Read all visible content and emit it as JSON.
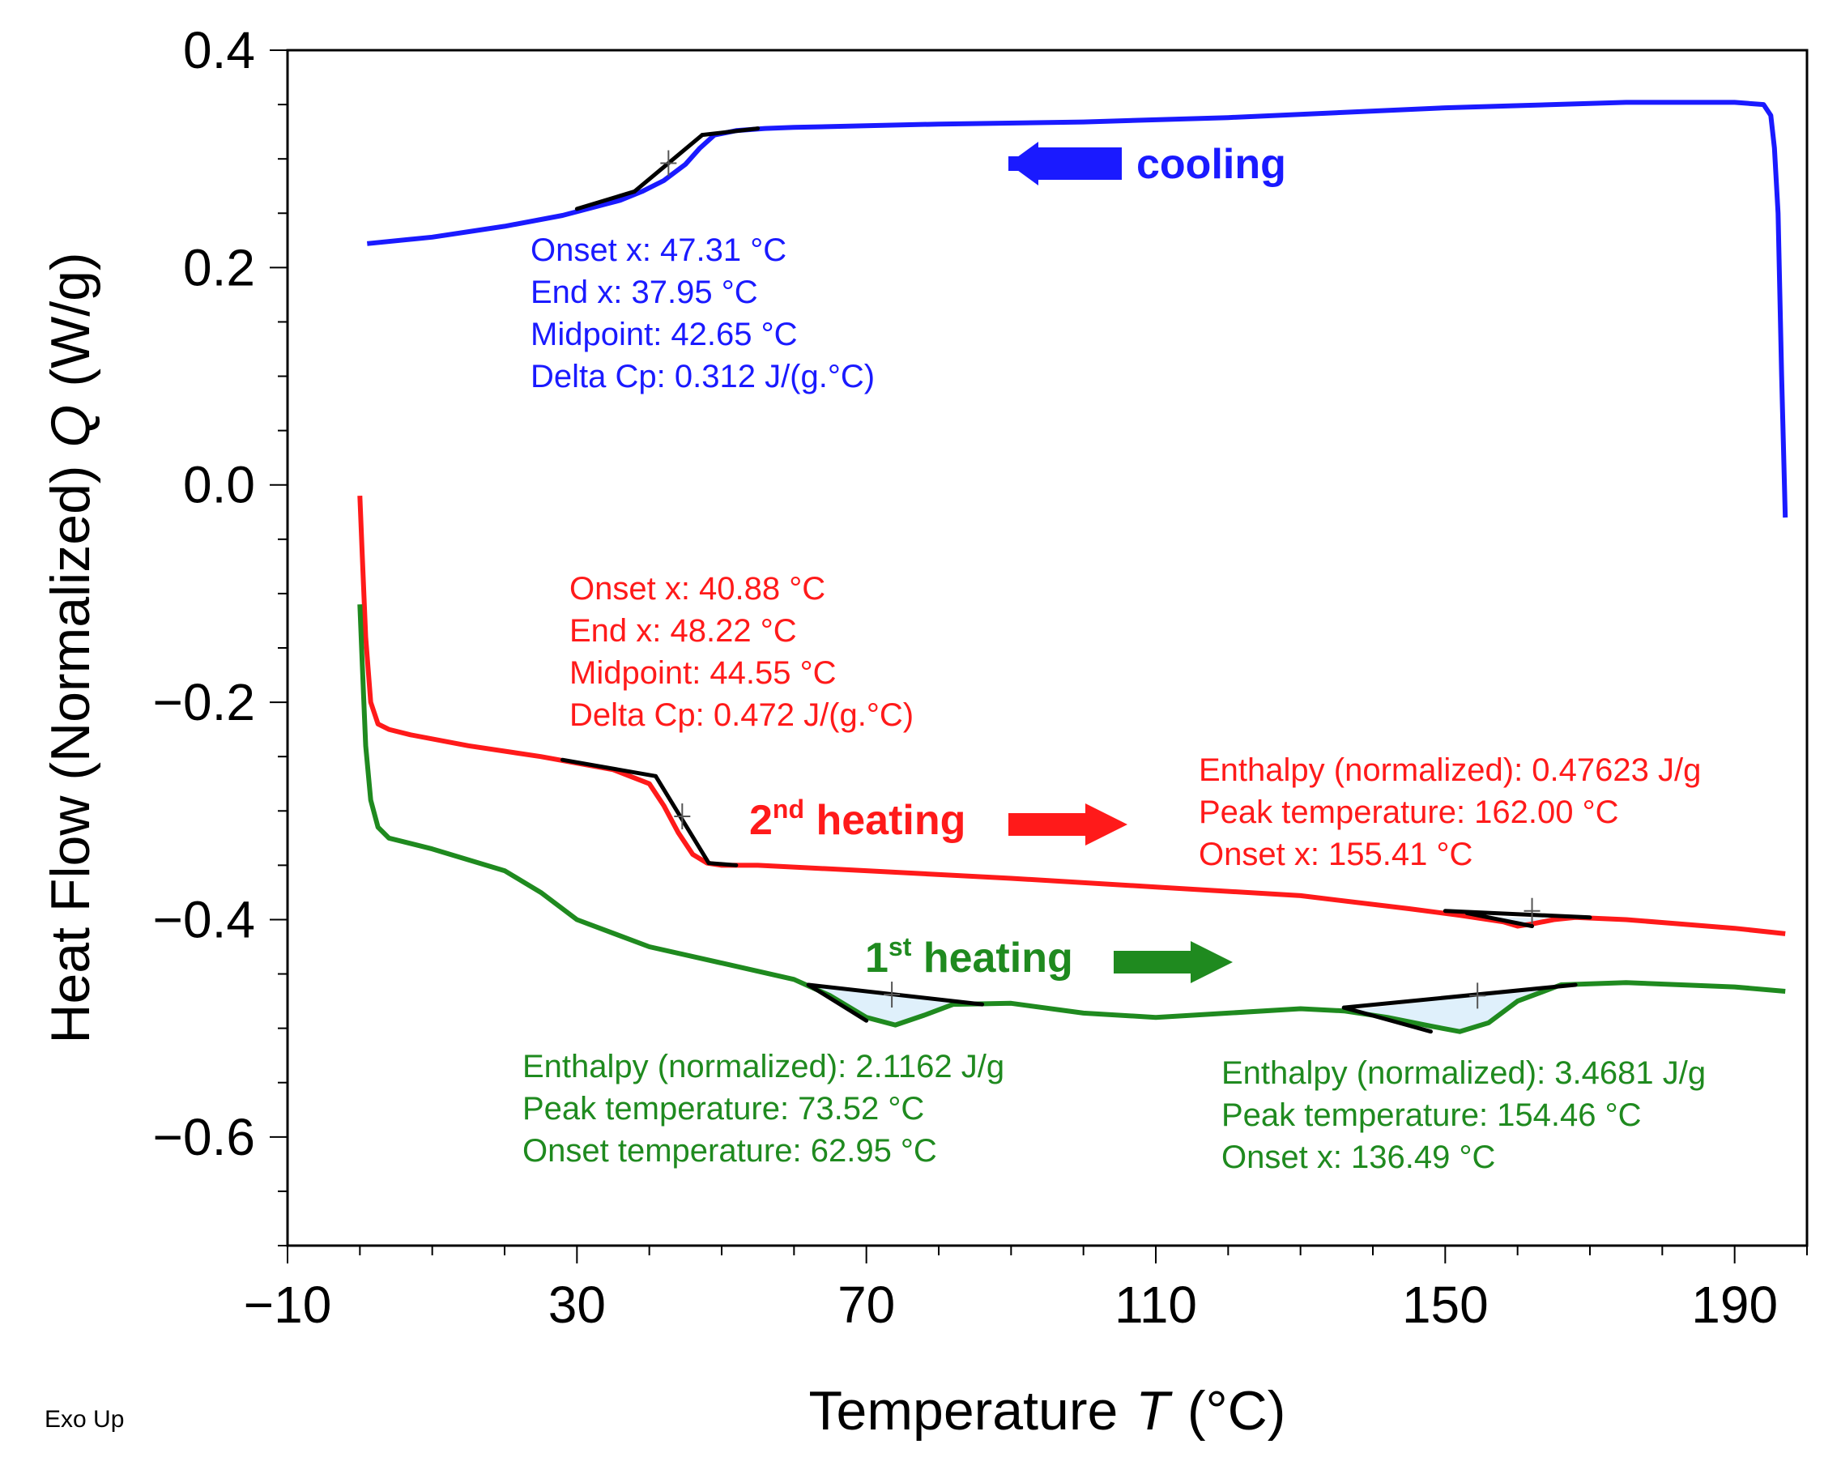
{
  "chart_data": {
    "type": "line",
    "title": "",
    "xlabel": "Temperature",
    "xlabel_symbol": "T",
    "xlabel_unit": "(°C)",
    "ylabel": "Heat Flow (Normalized)",
    "ylabel_symbol": "Q",
    "ylabel_unit": "(W/g)",
    "xlim": [
      -10,
      200
    ],
    "ylim": [
      -0.7,
      0.4
    ],
    "xticks": [
      -10,
      30,
      70,
      110,
      150,
      190
    ],
    "xtick_labels": [
      "−10",
      "30",
      "70",
      "110",
      "150",
      "190"
    ],
    "yticks": [
      0.4,
      0.2,
      0.0,
      -0.2,
      -0.4,
      -0.6
    ],
    "ytick_labels": [
      "0.4",
      "0.2",
      "0.0",
      "−0.2",
      "−0.4",
      "−0.6"
    ],
    "grid": false,
    "footer_note": "Exo Up",
    "series": [
      {
        "name": "cooling",
        "label": "cooling",
        "color": "#1a1aff",
        "direction": "left",
        "x": [
          197,
          196.5,
          196,
          195.5,
          195,
          194,
          190,
          175,
          150,
          120,
          100,
          80,
          60,
          56,
          52,
          49,
          47,
          45,
          42,
          39,
          36,
          32,
          28,
          20,
          10,
          1
        ],
        "y": [
          -0.03,
          0.1,
          0.25,
          0.31,
          0.34,
          0.35,
          0.352,
          0.352,
          0.347,
          0.338,
          0.334,
          0.332,
          0.329,
          0.328,
          0.326,
          0.322,
          0.31,
          0.295,
          0.28,
          0.27,
          0.262,
          0.255,
          0.248,
          0.238,
          0.228,
          0.222
        ],
        "annotations": [
          "Onset x: 47.31 °C",
          "End x: 37.95 °C",
          "Midpoint: 42.65 °C",
          "Delta Cp: 0.312 J/(g.°C)"
        ]
      },
      {
        "name": "2nd heating",
        "label_prefix": "2",
        "label_sup": "nd",
        "label_suffix": " heating",
        "color": "#ff1a1a",
        "direction": "right",
        "x": [
          0,
          0.3,
          0.8,
          1.5,
          2.5,
          4,
          7,
          15,
          25,
          35,
          40,
          42,
          44,
          46,
          48,
          50,
          55,
          70,
          90,
          110,
          130,
          145,
          152,
          158,
          160,
          162,
          165,
          168,
          175,
          190,
          197
        ],
        "y": [
          -0.01,
          -0.06,
          -0.14,
          -0.2,
          -0.22,
          -0.225,
          -0.23,
          -0.24,
          -0.25,
          -0.262,
          -0.275,
          -0.295,
          -0.32,
          -0.34,
          -0.348,
          -0.35,
          -0.35,
          -0.355,
          -0.362,
          -0.37,
          -0.378,
          -0.39,
          -0.396,
          -0.402,
          -0.406,
          -0.404,
          -0.4,
          -0.398,
          -0.4,
          -0.408,
          -0.413
        ],
        "annotations": [
          "Onset x: 40.88 °C",
          "End x: 48.22 °C",
          "Midpoint: 44.55 °C",
          "Delta Cp: 0.472 J/(g.°C)"
        ],
        "annotations_peak": [
          "Enthalpy (normalized): 0.47623 J/g",
          "Peak temperature: 162.00 °C",
          "Onset x: 155.41 °C"
        ]
      },
      {
        "name": "1st heating",
        "label_prefix": "1",
        "label_sup": "st",
        "label_suffix": " heating",
        "color": "#1f8a1f",
        "direction": "right",
        "x": [
          0,
          0.3,
          0.8,
          1.5,
          2.5,
          4,
          10,
          20,
          25,
          30,
          40,
          50,
          60,
          65,
          70,
          74,
          78,
          82,
          90,
          100,
          110,
          120,
          130,
          136,
          142,
          148,
          152,
          156,
          160,
          166,
          175,
          190,
          197
        ],
        "y": [
          -0.11,
          -0.16,
          -0.24,
          -0.29,
          -0.315,
          -0.325,
          -0.335,
          -0.355,
          -0.375,
          -0.4,
          -0.425,
          -0.44,
          -0.455,
          -0.47,
          -0.49,
          -0.497,
          -0.488,
          -0.478,
          -0.477,
          -0.486,
          -0.49,
          -0.486,
          -0.482,
          -0.484,
          -0.49,
          -0.498,
          -0.503,
          -0.495,
          -0.475,
          -0.46,
          -0.458,
          -0.462,
          -0.466
        ],
        "annotations_peak1": [
          "Enthalpy (normalized): 2.1162 J/g",
          "Peak temperature: 73.52 °C",
          "Onset temperature: 62.95 °C"
        ],
        "annotations_peak2": [
          "Enthalpy (normalized): 3.4681 J/g",
          "Peak temperature: 154.46 °C",
          "Onset x: 136.49 °C"
        ]
      }
    ]
  }
}
